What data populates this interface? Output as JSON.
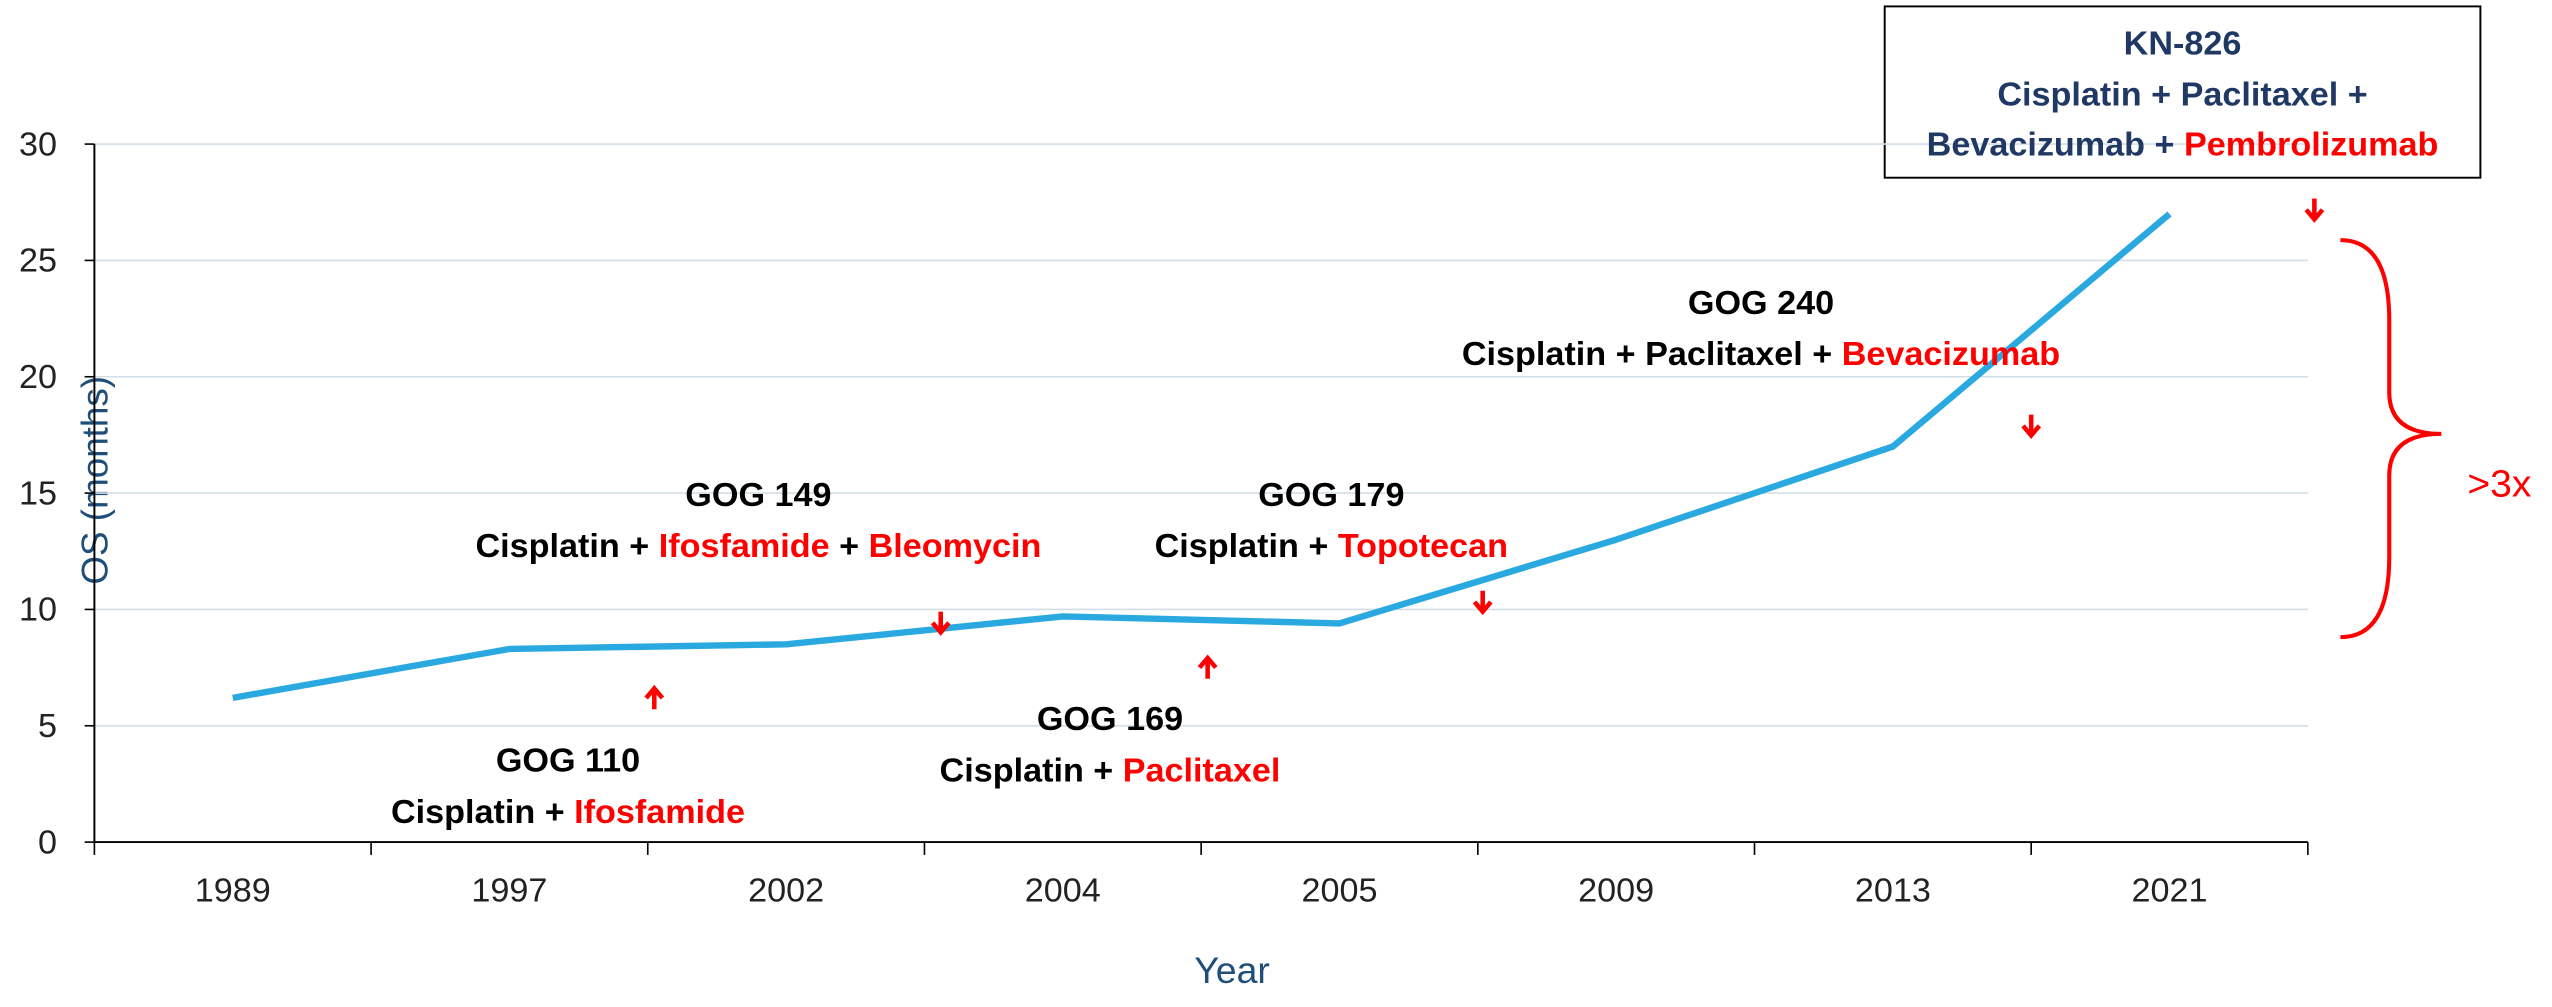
{
  "chart_data": {
    "type": "line",
    "x_label": "Year",
    "y_label": "OS (months)",
    "categories": [
      "1989",
      "1997",
      "2002",
      "2004",
      "2005",
      "2009",
      "2013",
      "2021"
    ],
    "values": [
      6.2,
      8.3,
      8.5,
      9.7,
      9.4,
      13,
      17,
      27
    ],
    "color": "#2aa9e0",
    "ylim": [
      0,
      30
    ],
    "yticks": [
      0,
      5,
      10,
      15,
      20,
      25,
      30
    ],
    "grid": true,
    "annotations": [
      {
        "title": "GOG 110",
        "lines": [
          [
            {
              "text": "Cisplatin + ",
              "color": "#000000"
            },
            {
              "text": "Ifosfamide",
              "color": "#ff0000"
            }
          ]
        ]
      },
      {
        "title": "GOG 149",
        "lines": [
          [
            {
              "text": "Cisplatin + ",
              "color": "#000000"
            },
            {
              "text": "Ifosfamide",
              "color": "#ff0000"
            },
            {
              "text": " + ",
              "color": "#000000"
            },
            {
              "text": "Bleomycin",
              "color": "#ff0000"
            }
          ]
        ]
      },
      {
        "title": "GOG 169",
        "lines": [
          [
            {
              "text": "Cisplatin + ",
              "color": "#000000"
            },
            {
              "text": "Paclitaxel",
              "color": "#ff0000"
            }
          ]
        ]
      },
      {
        "title": "GOG 179",
        "lines": [
          [
            {
              "text": "Cisplatin + ",
              "color": "#000000"
            },
            {
              "text": "Topotecan",
              "color": "#ff0000"
            }
          ]
        ]
      },
      {
        "title": "GOG 240",
        "lines": [
          [
            {
              "text": "Cisplatin + Paclitaxel + ",
              "color": "#000000"
            },
            {
              "text": "Bevacizumab",
              "color": "#ff0000"
            }
          ]
        ]
      },
      {
        "title": "KN-826",
        "lines": [
          [
            {
              "text": "Cisplatin + Paclitaxel +",
              "color": "#1f3864"
            }
          ],
          [
            {
              "text": "Bevacizumab + ",
              "color": "#1f3864"
            },
            {
              "text": "Pembrolizumab",
              "color": "#ff0000"
            }
          ]
        ]
      }
    ],
    "bracket_label": ">3x"
  }
}
